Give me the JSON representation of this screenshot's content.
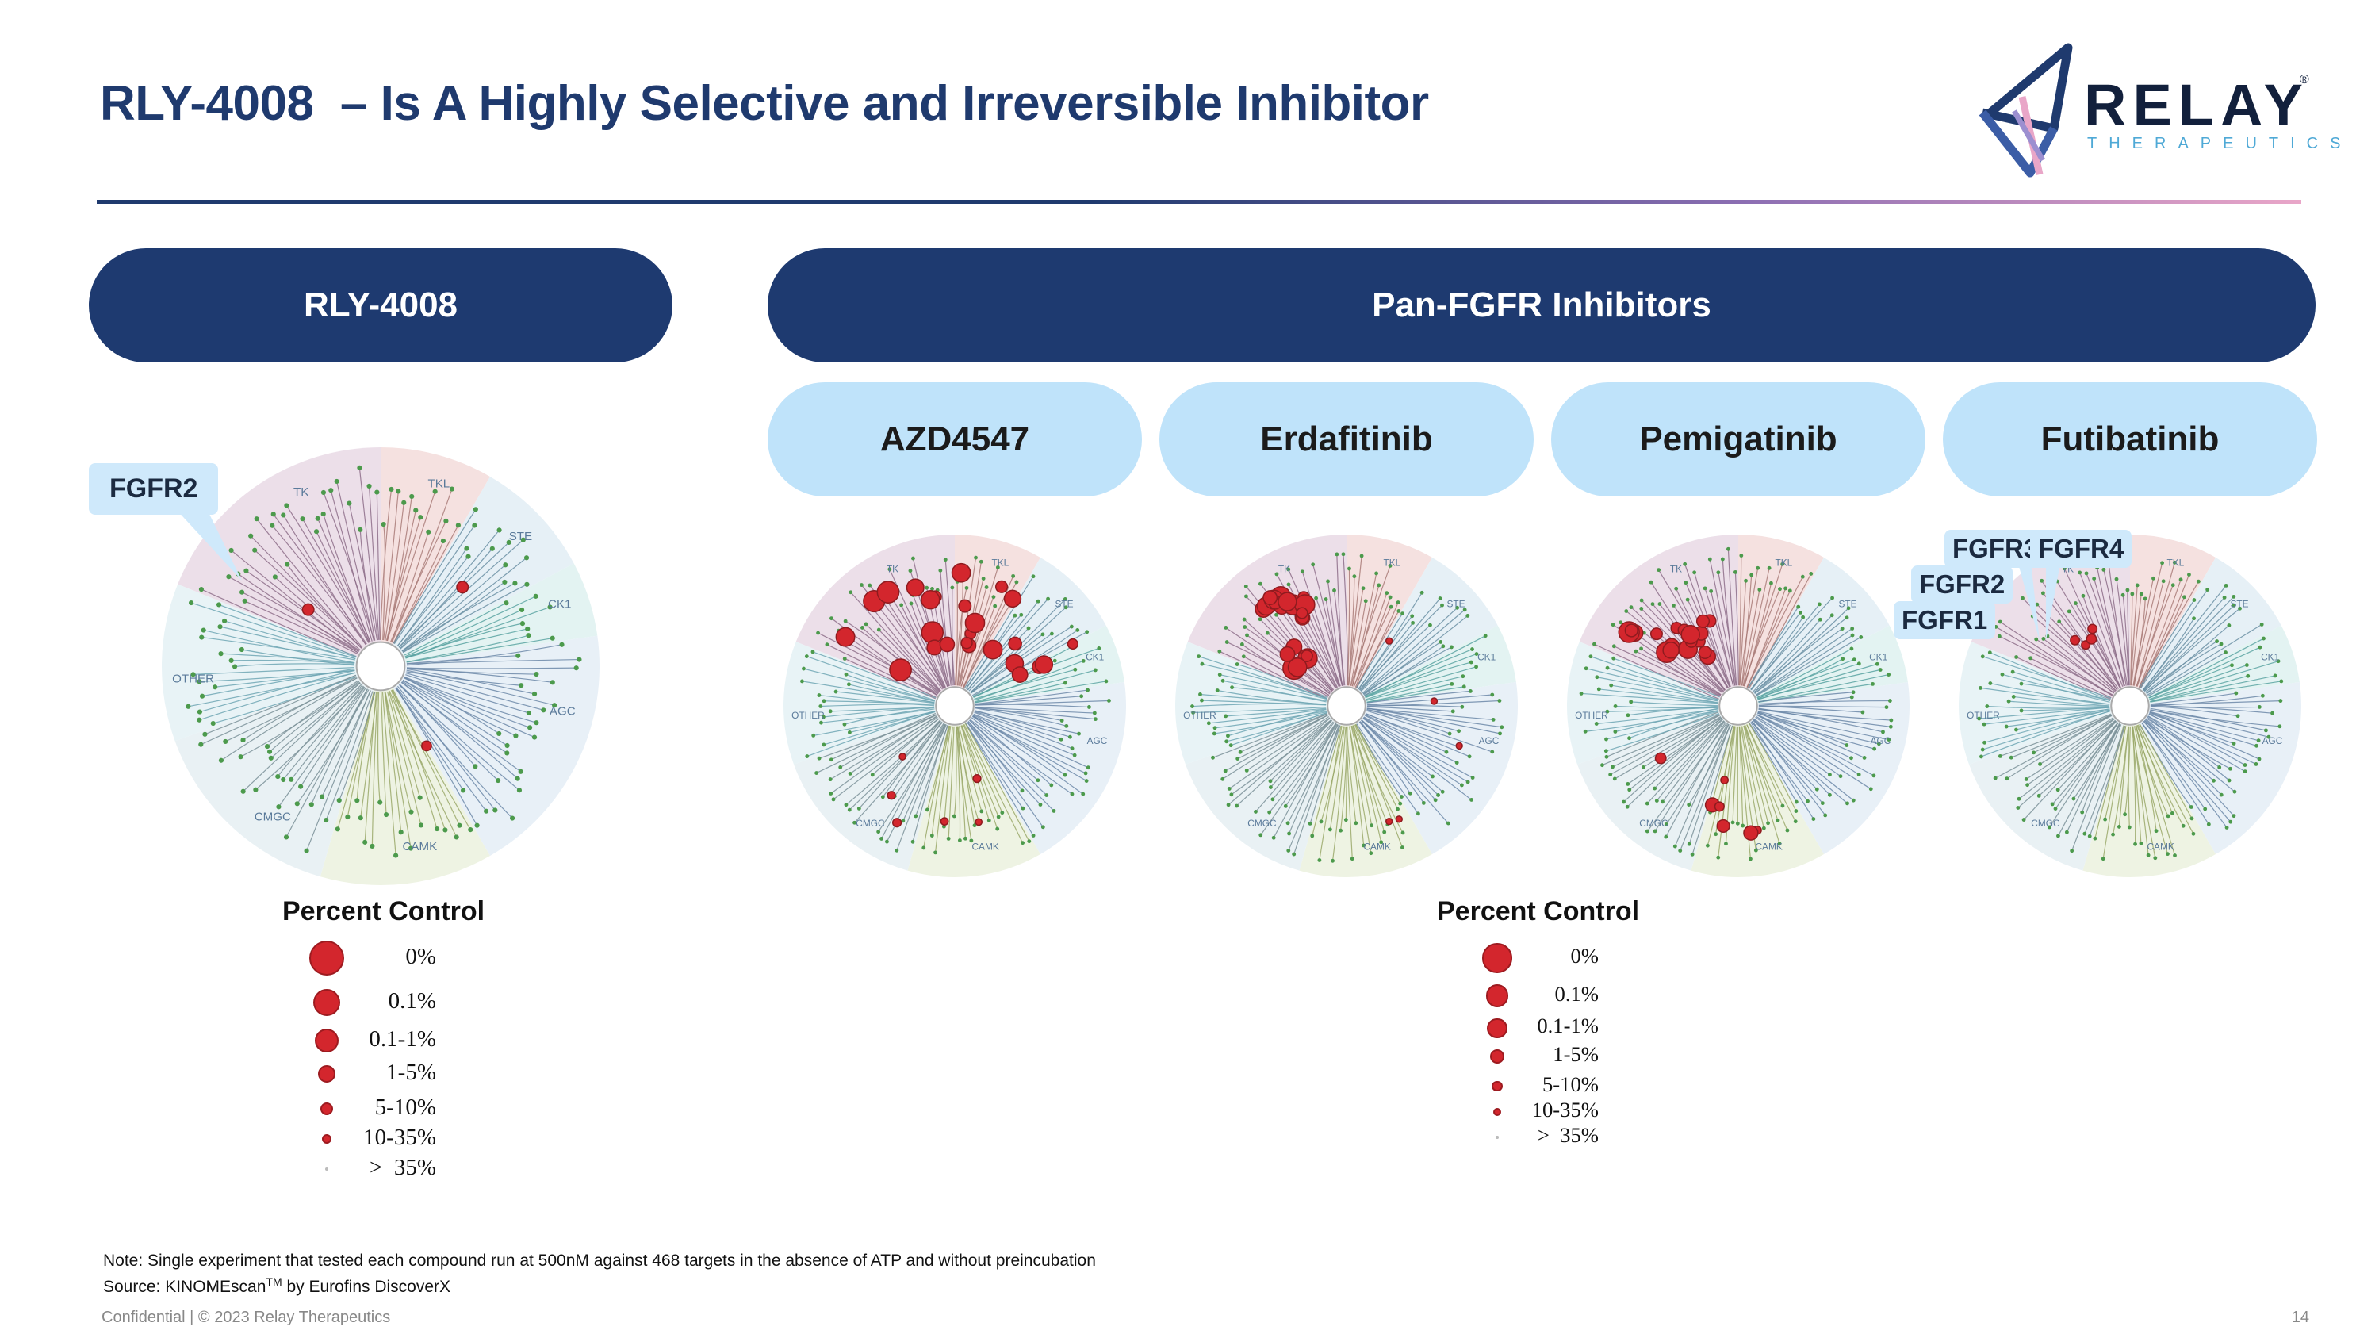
{
  "title": "RLY-4008  – Is A Highly Selective and Irreversible Inhibitor",
  "logo": {
    "word": "RELAY",
    "reg": "®",
    "sub": "THERAPEUTICS"
  },
  "headers": {
    "left": "RLY-4008",
    "right": "Pan-FGFR Inhibitors",
    "compounds": [
      "AZD4547",
      "Erdafitinib",
      "Pemigatinib",
      "Futibatinib"
    ]
  },
  "kinome_groups": [
    "TK",
    "TKL",
    "STE",
    "CK1",
    "AGC",
    "CAMK",
    "CMGC",
    "OTHER"
  ],
  "callouts": {
    "rly": "FGFR2",
    "futibatinib": [
      "FGFR3",
      "FGFR4",
      "FGFR2",
      "FGFR1"
    ]
  },
  "legend": {
    "title": "Percent Control",
    "items": [
      "0%",
      "0.1%",
      "0.1-1%",
      "1-5%",
      "5-10%",
      "10-35%",
      ">  35%"
    ]
  },
  "note": "Note: Single experiment that tested each compound run at 500nM against 468 targets in the absence of ATP and without preincubation",
  "source_prefix": "Source: KINOMEscan",
  "source_sup": "TM",
  "source_suffix": " by Eurofins DiscoverX",
  "footer": {
    "left": "Confidential | © 2023 Relay Therapeutics",
    "page": "14"
  },
  "colors": {
    "navy": "#1e3a70",
    "light_pill": "#bfe3fa",
    "hit_red": "#d3262d",
    "branch_green": "#4c9a4c"
  }
}
